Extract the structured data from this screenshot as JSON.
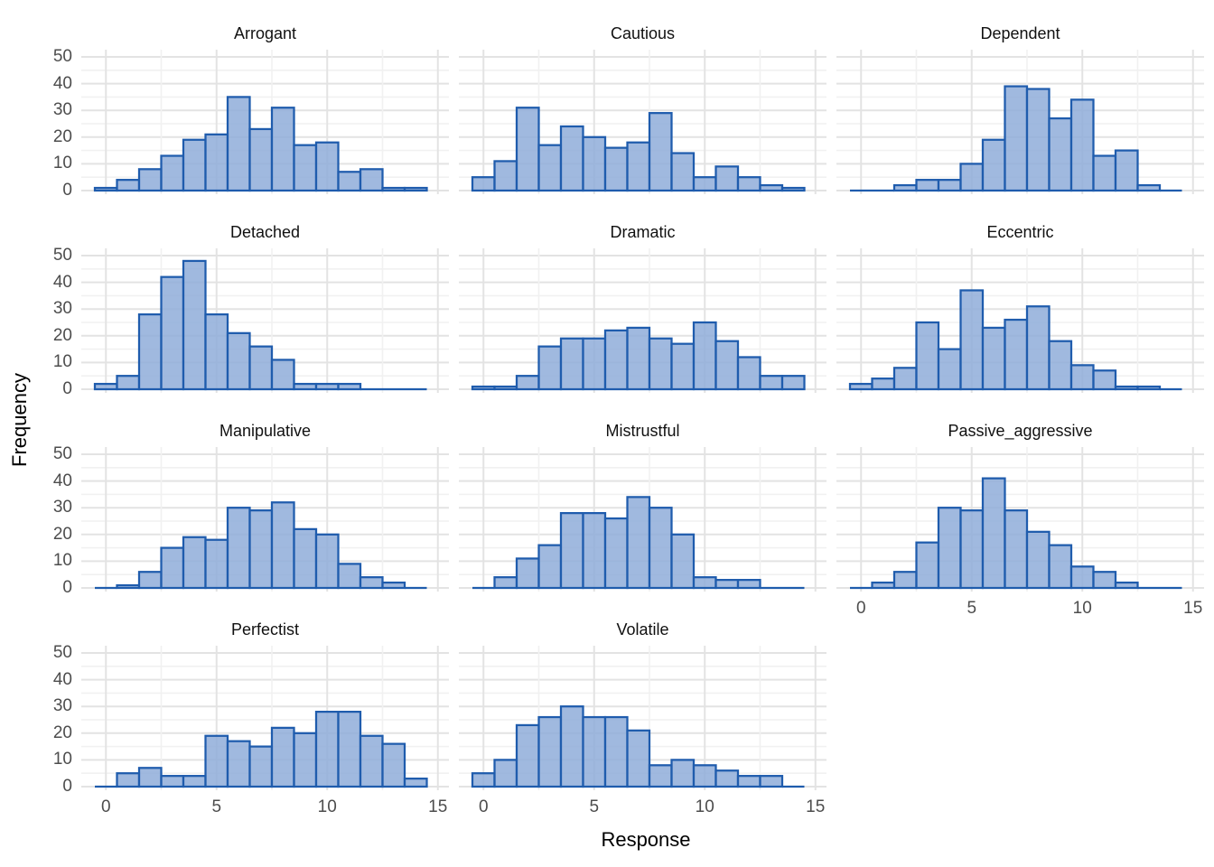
{
  "figure": {
    "background": "#ffffff",
    "x_axis_title": "Response",
    "y_axis_title": "Frequency"
  },
  "chart_data": {
    "type": "bar",
    "subtype": "faceted-histograms",
    "title": "",
    "xlabel": "Response",
    "ylabel": "Frequency",
    "binwidth": 1,
    "x_bin_centers": [
      0,
      1,
      2,
      3,
      4,
      5,
      6,
      7,
      8,
      9,
      10,
      11,
      12,
      13,
      14
    ],
    "x_ticks": [
      0,
      5,
      10,
      15
    ],
    "y_ticks": [
      0,
      10,
      20,
      30,
      40,
      50
    ],
    "ylim": [
      0,
      50
    ],
    "xlim": [
      -0.6,
      15.4
    ],
    "grid": {
      "rows": 4,
      "cols": 3,
      "major_gridlines": true,
      "minor_gridlines": true,
      "legend": "none"
    },
    "panels": [
      {
        "title": "Arrogant",
        "counts": [
          1,
          4,
          8,
          13,
          19,
          21,
          35,
          23,
          31,
          17,
          18,
          7,
          8,
          1,
          1
        ]
      },
      {
        "title": "Cautious",
        "counts": [
          5,
          11,
          31,
          17,
          24,
          20,
          16,
          18,
          29,
          14,
          5,
          9,
          5,
          2,
          1
        ]
      },
      {
        "title": "Dependent",
        "counts": [
          0,
          0,
          2,
          4,
          4,
          10,
          19,
          39,
          38,
          27,
          34,
          13,
          15,
          2,
          0
        ]
      },
      {
        "title": "Detached",
        "counts": [
          2,
          5,
          28,
          42,
          48,
          28,
          21,
          16,
          11,
          2,
          2,
          2,
          0,
          0,
          0
        ]
      },
      {
        "title": "Dramatic",
        "counts": [
          1,
          1,
          5,
          16,
          19,
          19,
          22,
          23,
          19,
          17,
          25,
          18,
          12,
          5,
          5
        ]
      },
      {
        "title": "Eccentric",
        "counts": [
          2,
          4,
          8,
          25,
          15,
          37,
          23,
          26,
          31,
          18,
          9,
          7,
          1,
          1,
          0
        ]
      },
      {
        "title": "Manipulative",
        "counts": [
          0,
          1,
          6,
          15,
          19,
          18,
          30,
          29,
          32,
          22,
          20,
          9,
          4,
          2,
          0
        ]
      },
      {
        "title": "Mistrustful",
        "counts": [
          0,
          4,
          11,
          16,
          28,
          28,
          26,
          34,
          30,
          20,
          4,
          3,
          3,
          0,
          0
        ]
      },
      {
        "title": "Passive_aggressive",
        "counts": [
          0,
          2,
          6,
          17,
          30,
          29,
          41,
          29,
          21,
          16,
          8,
          6,
          2,
          0,
          0
        ]
      },
      {
        "title": "Perfectist",
        "counts": [
          0,
          5,
          7,
          4,
          4,
          19,
          17,
          15,
          22,
          20,
          28,
          28,
          19,
          16,
          3
        ]
      },
      {
        "title": "Volatile",
        "counts": [
          5,
          10,
          23,
          26,
          30,
          26,
          26,
          21,
          8,
          10,
          8,
          6,
          4,
          4,
          0
        ]
      }
    ],
    "colors": {
      "bar_fill": "#8FADD9",
      "bar_stroke": "#1F5CAD",
      "grid_major": "#E3E3E3",
      "grid_minor": "#F1F1F1",
      "tick_label": "#4D4D4D",
      "title_text": "#111111",
      "axis_title_text": "#000000",
      "panel_background": "#FFFFFF"
    }
  }
}
